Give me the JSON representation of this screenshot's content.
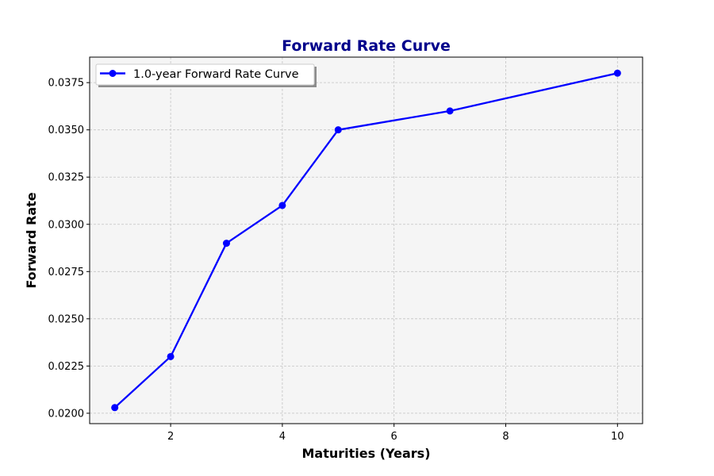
{
  "chart_data": {
    "type": "line",
    "title": "Forward Rate Curve",
    "xlabel": "Maturities (Years)",
    "ylabel": "Forward Rate",
    "xlim": [
      0.55,
      10.45
    ],
    "ylim": [
      0.01945,
      0.03885
    ],
    "xticks": [
      2,
      4,
      6,
      8,
      10
    ],
    "xtick_labels": [
      "2",
      "4",
      "6",
      "8",
      "10"
    ],
    "yticks": [
      0.02,
      0.0225,
      0.025,
      0.0275,
      0.03,
      0.0325,
      0.035,
      0.0375
    ],
    "ytick_labels": [
      "0.0200",
      "0.0225",
      "0.0250",
      "0.0275",
      "0.0300",
      "0.0325",
      "0.0350",
      "0.0375"
    ],
    "grid": true,
    "legend_position": "top-left",
    "series": [
      {
        "name": "1.0-year Forward Rate Curve",
        "color": "#0000ff",
        "marker": "circle",
        "x": [
          1,
          2,
          3,
          4,
          5,
          7,
          10
        ],
        "y": [
          0.0203,
          0.023,
          0.029,
          0.031,
          0.035,
          0.036,
          0.038
        ]
      }
    ]
  },
  "colors": {
    "plot_background": "#f5f5f5",
    "grid": "#c4c4c4",
    "title": "#00008b"
  }
}
